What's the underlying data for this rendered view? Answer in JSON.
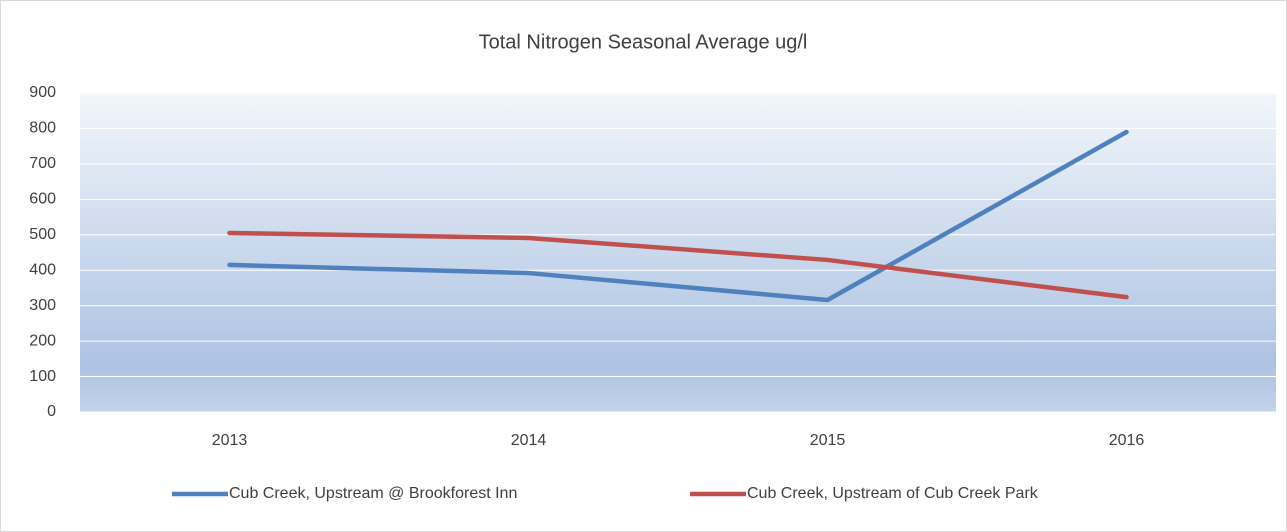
{
  "chart_data": {
    "type": "line",
    "title": "Total Nitrogen Seasonal Average ug/l",
    "categories": [
      "2013",
      "2014",
      "2015",
      "2016"
    ],
    "series": [
      {
        "name": "Cub Creek, Upstream @ Brookforest Inn",
        "color": "#4f81bd",
        "values": [
          415,
          392,
          316,
          790
        ]
      },
      {
        "name": "Cub Creek, Upstream of Cub Creek Park",
        "color": "#c0504d",
        "values": [
          505,
          491,
          429,
          324
        ]
      }
    ],
    "ylim": [
      0,
      900
    ],
    "yticks": [
      0,
      100,
      200,
      300,
      400,
      500,
      600,
      700,
      800,
      900
    ],
    "grid": true,
    "legend": "bottom"
  }
}
